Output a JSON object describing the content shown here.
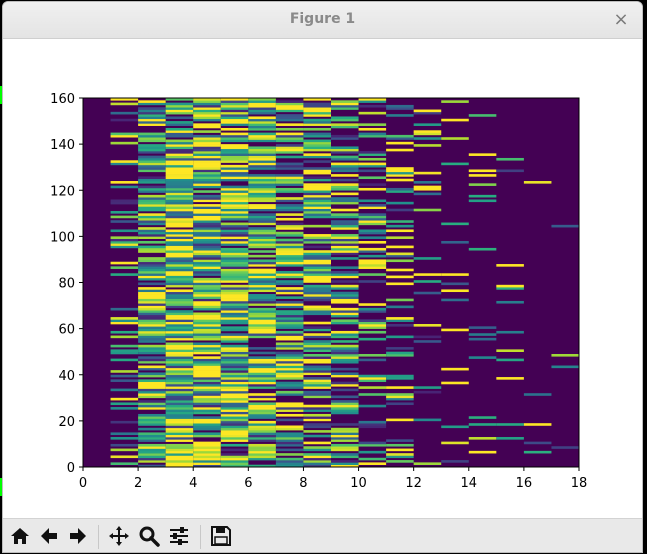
{
  "window": {
    "title": "Figure 1",
    "close_glyph": "×"
  },
  "toolbar": {
    "buttons": [
      {
        "name": "home-button",
        "icon": "home-icon"
      },
      {
        "name": "back-button",
        "icon": "arrow-left-icon"
      },
      {
        "name": "forward-button",
        "icon": "arrow-right-icon"
      },
      {
        "name": "pan-button",
        "icon": "move-icon"
      },
      {
        "name": "zoom-button",
        "icon": "magnifier-icon"
      },
      {
        "name": "configure-subplots-button",
        "icon": "sliders-icon"
      },
      {
        "name": "save-button",
        "icon": "floppy-disk-icon"
      }
    ]
  },
  "chart_data": {
    "type": "heatmap",
    "colormap": "viridis",
    "background_color": "#440154",
    "xlim": [
      0,
      18
    ],
    "ylim": [
      0,
      160
    ],
    "xticks": [
      0,
      2,
      4,
      6,
      8,
      10,
      12,
      14,
      16,
      18
    ],
    "yticks": [
      0,
      20,
      40,
      60,
      80,
      100,
      120,
      140,
      160
    ],
    "cell_width": 1,
    "rows_per_column": 160,
    "grid": false,
    "columns": [
      {
        "x": 1,
        "density": 0.35,
        "mean": 0.55
      },
      {
        "x": 2,
        "density": 1.0,
        "mean": 0.45
      },
      {
        "x": 3,
        "density": 1.0,
        "mean": 0.55
      },
      {
        "x": 4,
        "density": 1.0,
        "mean": 0.6
      },
      {
        "x": 5,
        "density": 1.0,
        "mean": 0.55
      },
      {
        "x": 6,
        "density": 0.95,
        "mean": 0.5
      },
      {
        "x": 7,
        "density": 0.9,
        "mean": 0.5
      },
      {
        "x": 8,
        "density": 0.88,
        "mean": 0.5
      },
      {
        "x": 9,
        "density": 0.75,
        "mean": 0.5
      },
      {
        "x": 10,
        "density": 0.45,
        "mean": 0.55
      },
      {
        "x": 11,
        "density": 0.3,
        "mean": 0.55
      },
      {
        "x": 12,
        "density": 0.12,
        "mean": 0.6
      },
      {
        "x": 13,
        "density": 0.1,
        "mean": 0.6
      },
      {
        "x": 14,
        "density": 0.07,
        "mean": 0.6
      },
      {
        "x": 15,
        "density": 0.05,
        "mean": 0.6
      },
      {
        "x": 16,
        "density": 0.04,
        "mean": 0.5
      },
      {
        "x": 17,
        "density": 0.02,
        "mean": 0.5
      }
    ]
  }
}
